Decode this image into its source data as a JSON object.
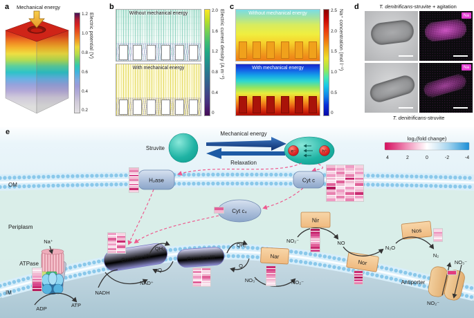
{
  "panels": {
    "a": {
      "label": "a",
      "annotation": "Mechanical energy",
      "colorbar": {
        "title": "Electric potential (V)",
        "ticks": [
          "1.2",
          "1.0",
          "0.8",
          "0.6",
          "0.4",
          "0.2"
        ]
      }
    },
    "b": {
      "label": "b",
      "top_title": "Without mechanical energy",
      "bottom_title": "With mechanical energy",
      "colorbar": {
        "title": "Electric current density (A m⁻²)",
        "ticks": [
          "2.0",
          "1.6",
          "1.2",
          "0.8",
          "0.4",
          "0"
        ]
      }
    },
    "c": {
      "label": "c",
      "top_title": "Without mechanical energy",
      "bottom_title": "With mechanical energy",
      "colorbar": {
        "title": "Na⁺ concentration (mol l⁻¹)",
        "ticks": [
          "2.5",
          "2.0",
          "1.5",
          "1.0",
          "0.5",
          "0"
        ]
      }
    },
    "d": {
      "label": "d",
      "title_italic": "T. denitrificans",
      "title_rest": "-struvite + agitation",
      "caption_italic": "T. denitrificans",
      "caption_rest": "-struvite",
      "na_badge": "Na"
    },
    "e": {
      "label": "e",
      "struvite": "Struvite",
      "mechanical_energy": "Mechanical energy",
      "relaxation": "Relaxation",
      "electron": "e⁻",
      "hole": "h⁺",
      "om": "OM",
      "im": "IM",
      "periplasm": "Periplasm",
      "proteins": {
        "h2ase": "H₂ase",
        "cytc": "Cyt c",
        "cytc4": "Cyt c₄",
        "complex12": "Complex I/II",
        "complex3": "Complex III",
        "nar": "Nar",
        "nir": "Nir",
        "nor": "Nor",
        "nos": "Nos",
        "atpase": "ATPase",
        "antiporter": "Antiporter"
      },
      "metabolites": {
        "na": "Na⁺",
        "adp": "ADP",
        "atp": "ATP",
        "nadh": "NADH",
        "nad": "NAD⁺",
        "qh2_1": "QH₂",
        "q_1": "Q",
        "qh2_2": "QH₂",
        "q_2": "Q",
        "no3": "NO₃⁻",
        "no2_nar": "NO₂⁻",
        "no2_nir": "NO₂⁻",
        "no": "NO",
        "n2o": "N₂O",
        "n2": "N₂",
        "no3_anti": "NO₃⁻",
        "no2_anti": "NO₂⁻"
      },
      "legend": {
        "title": "log₂(fold change)",
        "ticks": [
          "4",
          "2",
          "0",
          "-2",
          "-4"
        ]
      }
    }
  },
  "colors": {
    "fold_positive": "#d5105e",
    "fold_negative": "#1b8ed8",
    "membrane_blue": "#7fc6ea",
    "struvite_teal": "#1fb3a4",
    "na_badge_magenta": "#e33fd4"
  },
  "heatmaps": {
    "h2ase": [
      [
        "#f2b9d2",
        "#e882b0",
        "#f6d2e2",
        "#d6468c",
        "#f2b9d2",
        "#e882b0",
        "#f9e0ec",
        "#e571a8",
        "#f2b9d2",
        "#c92a70",
        "#f6d2e2"
      ]
    ],
    "complex12": [
      [
        "#ef9cc4",
        "#f6d2e2",
        "#e06098",
        "#f2b9d2",
        "#ef9cc4",
        "#f9e0ec",
        "#e882b0",
        "#f2b9d2"
      ],
      [
        "#f6d2e2",
        "#e882b0",
        "#f2b9d2",
        "#c92a70",
        "#f6d2e2",
        "#e06098",
        "#f9e0ec",
        "#ef9cc4"
      ]
    ],
    "complex3": [
      [
        "#f2b9d2",
        "#e882b0",
        "#f6d2e2",
        "#ef9cc4",
        "#f9e0ec",
        "#e06098",
        "#f2b9d2"
      ],
      [
        "#e882b0",
        "#f6d2e2",
        "#f2b9d2",
        "#e06098",
        "#ef9cc4",
        "#f6d2e2",
        "#f9e0ec"
      ]
    ],
    "cytc": [
      [
        "#f2b9d2",
        "#e882b0",
        "#f6d2e2",
        "#ef9cc4",
        "#f2b9d2",
        "#f9e0ec",
        "#e06098",
        "#b3195c",
        "#f2b9d2",
        "#e882b0",
        "#f6d2e2",
        "#ef9cc4"
      ],
      [
        "#f6d2e2",
        "#ef9cc4",
        "#e882b0",
        "#f2b9d2",
        "#f6d2e2",
        "#e06098",
        "#f2b9d2",
        "#f9e0ec",
        "#ef9cc4",
        "#f2b9d2",
        "#e882b0",
        "#f6d2e2"
      ],
      [
        "#ef9cc4",
        "#f2b9d2",
        "#f6d2e2",
        "#e882b0",
        "#c92a70",
        "#f2b9d2",
        "#f9e0ec",
        "#ef9cc4",
        "#f6d2e2",
        "#e06098",
        "#f2b9d2",
        "#e882b0"
      ],
      [
        "#f6d2e2",
        "#f2b9d2",
        "#ef9cc4",
        "#f6d2e2",
        "#e882b0",
        "#f2b9d2",
        "#e06098",
        "#f6d2e2",
        "#f2b9d2",
        "#c92a70",
        "#ef9cc4",
        "#f9e0ec"
      ]
    ],
    "cytc4": [
      [
        "#e06098",
        "#f2b9d2"
      ]
    ],
    "atpase": [
      [
        "#f9e0ec",
        "#f6d2e2",
        "#f2b9d2",
        "#ef9cc4",
        "#e882b0",
        "#e06098",
        "#d6468c",
        "#c92a70",
        "#b3195c"
      ]
    ],
    "nar": [
      [
        "#c92a70",
        "#d6468c",
        "#e06098",
        "#e882b0",
        "#ef9cc4",
        "#f2b9d2",
        "#f6d2e2",
        "#f9e0ec"
      ]
    ],
    "nir": [
      [
        "#b3195c",
        "#c92a70",
        "#d6468c",
        "#e882b0",
        "#f2b9d2",
        "#ef9cc4",
        "#e06098",
        "#c92a70",
        "#d6468c"
      ]
    ],
    "nor": [
      [
        "#c92a70",
        "#e06098",
        "#b3195c",
        "#d6468c",
        "#e882b0"
      ]
    ],
    "nos": [
      [
        "#f6d2e2",
        "#ef9cc4",
        "#f2b9d2",
        "#f9e0ec",
        "#f2b9d2"
      ]
    ],
    "antiporter": [
      [
        "#e23d7f"
      ]
    ]
  }
}
